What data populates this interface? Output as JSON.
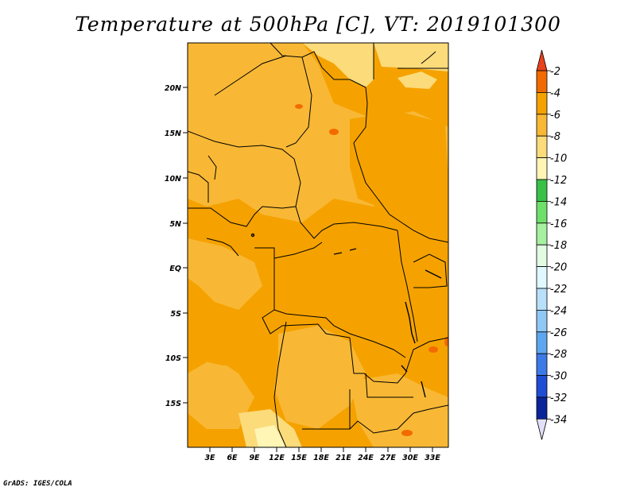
{
  "title": "Temperature at 500hPa [C], VT: 2019101300",
  "credit": "GrADS: IGES/COLA",
  "map": {
    "lat_labels": [
      "20N",
      "15N",
      "10N",
      "5N",
      "EQ",
      "5S",
      "10S",
      "15S"
    ],
    "lon_labels": [
      "3E",
      "6E",
      "9E",
      "12E",
      "15E",
      "18E",
      "21E",
      "24E",
      "27E",
      "30E",
      "33E"
    ]
  },
  "colorbar": {
    "labels": [
      "-2",
      "-4",
      "-6",
      "-8",
      "-10",
      "-12",
      "-14",
      "-16",
      "-18",
      "-20",
      "-22",
      "-24",
      "-26",
      "-28",
      "-30",
      "-32",
      "-34"
    ],
    "colors": [
      "#f0451f",
      "#f26b00",
      "#f5a200",
      "#f8b835",
      "#fbdb7a",
      "#fff5b5",
      "#37c147",
      "#6ee06a",
      "#a6f0a0",
      "#e2fbe2",
      "#e0f8ff",
      "#b8e0fa",
      "#90c8f5",
      "#5ea7f0",
      "#3d7ae8",
      "#1f4ed5",
      "#0a2599",
      "#000a5f"
    ],
    "top_tri": "#e8431c",
    "bottom_tri": "#e2e0f8"
  }
}
